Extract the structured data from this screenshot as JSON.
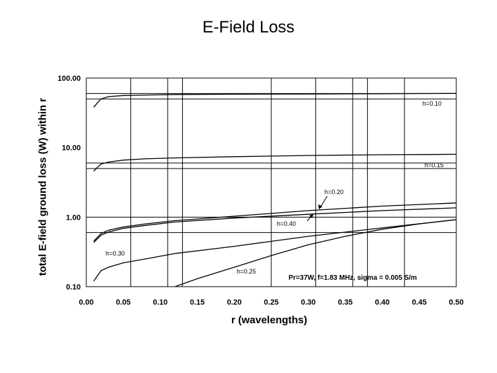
{
  "chart_data": {
    "type": "line",
    "title": "E-Field Loss",
    "xlabel": "r (wavelengths)",
    "ylabel": "total E-field ground loss (W) within r",
    "xlim": [
      0,
      0.5
    ],
    "ylim": [
      0.1,
      100
    ],
    "yscale": "log",
    "xticks": [
      "0.00",
      "0.05",
      "0.10",
      "0.15",
      "0.20",
      "0.25",
      "0.30",
      "0.35",
      "0.40",
      "0.45",
      "0.50"
    ],
    "yticks": [
      "100.00",
      "10.00",
      "1.00",
      "0.10"
    ],
    "ytick_values": [
      100,
      10,
      1,
      0.1
    ],
    "xtick_values": [
      0,
      0.05,
      0.1,
      0.15,
      0.2,
      0.25,
      0.3,
      0.35,
      0.4,
      0.45,
      0.5
    ],
    "note": "Pr=37W, f=1.83 MHz, sigma = 0.005 S/m",
    "vertical_lines_x": [
      0.06,
      0.11,
      0.13,
      0.25,
      0.31,
      0.36,
      0.38,
      0.43
    ],
    "horizontal_lines_y": [
      60,
      50,
      6,
      5,
      1,
      0.6
    ],
    "series": [
      {
        "name": "h=0.10",
        "x": [
          0.01,
          0.015,
          0.02,
          0.03,
          0.05,
          0.08,
          0.12,
          0.2,
          0.3,
          0.4,
          0.5
        ],
        "y": [
          38,
          44,
          50,
          54,
          56,
          57,
          58,
          58.5,
          59,
          59.5,
          60
        ]
      },
      {
        "name": "h=0.15",
        "x": [
          0.01,
          0.015,
          0.02,
          0.03,
          0.05,
          0.08,
          0.12,
          0.2,
          0.3,
          0.4,
          0.5
        ],
        "y": [
          4.6,
          5.2,
          5.8,
          6.2,
          6.6,
          6.9,
          7.1,
          7.4,
          7.7,
          7.9,
          8.0
        ]
      },
      {
        "name": "h=0.20",
        "x": [
          0.01,
          0.02,
          0.03,
          0.05,
          0.08,
          0.12,
          0.2,
          0.3,
          0.4,
          0.5
        ],
        "y": [
          0.45,
          0.58,
          0.65,
          0.72,
          0.8,
          0.89,
          1.03,
          1.24,
          1.44,
          1.6
        ]
      },
      {
        "name": "h=0.40",
        "x": [
          0.01,
          0.02,
          0.03,
          0.05,
          0.08,
          0.12,
          0.2,
          0.3,
          0.4,
          0.5
        ],
        "y": [
          0.43,
          0.55,
          0.61,
          0.69,
          0.76,
          0.85,
          0.97,
          1.1,
          1.24,
          1.36
        ]
      },
      {
        "name": "h=0.30",
        "x": [
          0.01,
          0.02,
          0.03,
          0.05,
          0.08,
          0.12,
          0.2,
          0.3,
          0.4,
          0.5
        ],
        "y": [
          0.12,
          0.17,
          0.19,
          0.22,
          0.25,
          0.3,
          0.38,
          0.53,
          0.7,
          0.92
        ]
      },
      {
        "name": "h=0.25",
        "x": [
          0.12,
          0.15,
          0.2,
          0.25,
          0.3,
          0.35,
          0.4,
          0.45,
          0.5
        ],
        "y": [
          0.1,
          0.13,
          0.19,
          0.28,
          0.4,
          0.53,
          0.67,
          0.8,
          0.92
        ]
      }
    ]
  }
}
